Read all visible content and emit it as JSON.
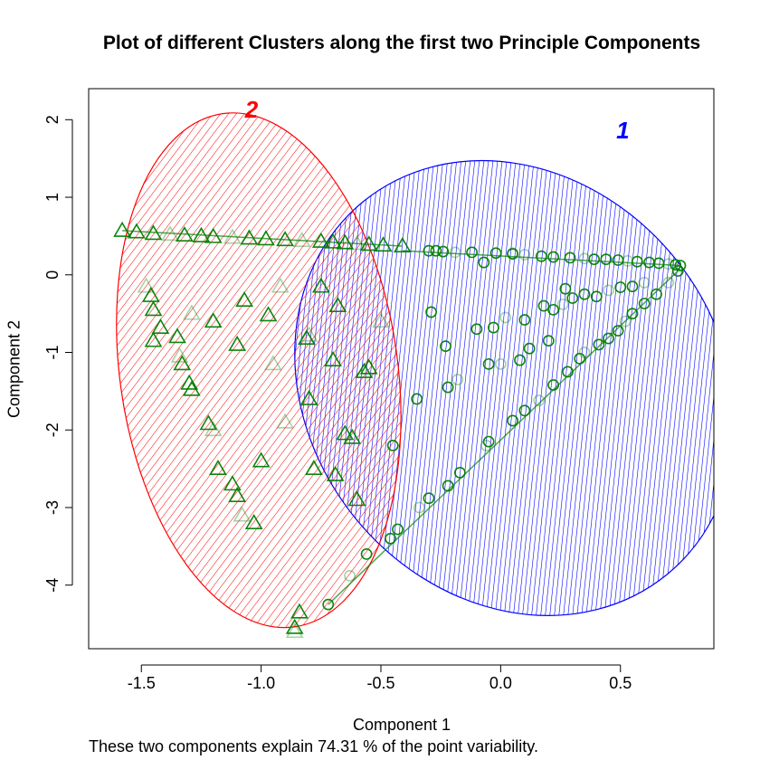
{
  "chart_data": {
    "type": "scatter",
    "title": "Plot of different Clusters along the first two Principle Components",
    "xlabel": "Component 1",
    "ylabel": "Component 2",
    "subtitle": "These two components explain 74.31 % of the point variability.",
    "xlim": [
      -1.72,
      0.89
    ],
    "ylim": [
      -4.82,
      2.4
    ],
    "x_ticks": [
      "-1.5",
      "-1.0",
      "-0.5",
      "0.0",
      "0.5"
    ],
    "x_tick_values": [
      -1.5,
      -1.0,
      -0.5,
      0.0,
      0.5
    ],
    "y_ticks": [
      "2",
      "1",
      "0",
      "-1",
      "-2",
      "-3",
      "-4"
    ],
    "y_tick_values": [
      2,
      1,
      0,
      -1,
      -2,
      -3,
      -4
    ],
    "grid": false,
    "clusters": [
      {
        "label": "1",
        "color": "#0000FF",
        "ellipse": {
          "cx": 0.06,
          "cy": -1.46,
          "rx": 0.86,
          "ry": 3.1,
          "angle_deg": 39
        },
        "marker": "circle",
        "marker_color": "#008000",
        "points": [
          [
            -0.3,
            0.31
          ],
          [
            -0.27,
            0.31
          ],
          [
            -0.24,
            0.3
          ],
          [
            -0.19,
            0.29
          ],
          [
            -0.12,
            0.29
          ],
          [
            -0.02,
            0.28
          ],
          [
            0.05,
            0.27
          ],
          [
            0.1,
            0.26
          ],
          [
            0.17,
            0.24
          ],
          [
            0.22,
            0.23
          ],
          [
            0.29,
            0.22
          ],
          [
            0.35,
            0.21
          ],
          [
            0.39,
            0.2
          ],
          [
            0.44,
            0.2
          ],
          [
            0.49,
            0.19
          ],
          [
            0.53,
            0.18
          ],
          [
            0.57,
            0.17
          ],
          [
            0.62,
            0.16
          ],
          [
            0.66,
            0.15
          ],
          [
            0.7,
            0.14
          ],
          [
            0.73,
            0.13
          ],
          [
            0.75,
            0.12
          ],
          [
            -0.72,
            -4.25
          ],
          [
            -0.63,
            -3.88
          ],
          [
            -0.56,
            -3.6
          ],
          [
            -0.46,
            -3.4
          ],
          [
            -0.43,
            -3.28
          ],
          [
            -0.34,
            -3.0
          ],
          [
            -0.3,
            -2.88
          ],
          [
            -0.22,
            -2.72
          ],
          [
            -0.17,
            -2.55
          ],
          [
            -0.06,
            -2.2
          ],
          [
            -0.05,
            -2.15
          ],
          [
            0.05,
            -1.88
          ],
          [
            0.1,
            -1.75
          ],
          [
            0.16,
            -1.62
          ],
          [
            0.22,
            -1.42
          ],
          [
            0.28,
            -1.25
          ],
          [
            0.33,
            -1.08
          ],
          [
            0.35,
            -1.0
          ],
          [
            0.41,
            -0.9
          ],
          [
            0.45,
            -0.82
          ],
          [
            0.49,
            -0.72
          ],
          [
            0.52,
            -0.6
          ],
          [
            0.55,
            -0.5
          ],
          [
            0.6,
            -0.37
          ],
          [
            0.65,
            -0.25
          ],
          [
            0.7,
            -0.1
          ],
          [
            0.74,
            0.05
          ],
          [
            -0.29,
            -0.48
          ],
          [
            -0.23,
            -0.92
          ],
          [
            -0.18,
            -1.35
          ],
          [
            -0.1,
            -0.7
          ],
          [
            -0.05,
            -1.15
          ],
          [
            -0.03,
            -0.68
          ],
          [
            0.02,
            -0.55
          ],
          [
            0.1,
            -0.58
          ],
          [
            0.18,
            -0.4
          ],
          [
            0.22,
            -0.45
          ],
          [
            0.26,
            -0.38
          ],
          [
            0.3,
            -0.3
          ],
          [
            0.35,
            -0.25
          ],
          [
            0.4,
            -0.28
          ],
          [
            0.45,
            -0.2
          ],
          [
            0.5,
            -0.16
          ],
          [
            0.55,
            -0.15
          ],
          [
            -0.07,
            0.16
          ],
          [
            0.05,
            0.28
          ],
          [
            0.12,
            -0.95
          ],
          [
            0.2,
            -0.85
          ],
          [
            0.27,
            -0.18
          ],
          [
            0.6,
            -0.1
          ],
          [
            -0.35,
            -1.6
          ],
          [
            -0.45,
            -2.2
          ],
          [
            -0.22,
            -1.45
          ],
          [
            0.0,
            -1.15
          ],
          [
            0.08,
            -1.1
          ]
        ]
      },
      {
        "label": "2",
        "color": "#FF0000",
        "ellipse": {
          "cx": -1.01,
          "cy": -1.23,
          "rx": 0.58,
          "ry": 3.34,
          "angle_deg": 8
        },
        "marker": "triangle",
        "marker_color": "#008000",
        "points": [
          [
            -1.58,
            0.57
          ],
          [
            -1.52,
            0.55
          ],
          [
            -1.45,
            0.53
          ],
          [
            -1.38,
            0.52
          ],
          [
            -1.32,
            0.51
          ],
          [
            -1.25,
            0.5
          ],
          [
            -1.2,
            0.49
          ],
          [
            -1.12,
            0.48
          ],
          [
            -1.05,
            0.47
          ],
          [
            -0.98,
            0.46
          ],
          [
            -0.9,
            0.45
          ],
          [
            -0.83,
            0.44
          ],
          [
            -0.75,
            0.43
          ],
          [
            -0.7,
            0.42
          ],
          [
            -0.65,
            0.41
          ],
          [
            -0.6,
            0.4
          ],
          [
            -0.55,
            0.39
          ],
          [
            -0.49,
            0.38
          ],
          [
            -0.41,
            0.37
          ],
          [
            -1.48,
            -0.15
          ],
          [
            -1.46,
            -0.27
          ],
          [
            -1.45,
            -0.45
          ],
          [
            -1.42,
            -0.68
          ],
          [
            -1.34,
            -1.05
          ],
          [
            -1.33,
            -1.15
          ],
          [
            -1.29,
            -1.48
          ],
          [
            -1.22,
            -1.92
          ],
          [
            -1.2,
            -2.0
          ],
          [
            -1.18,
            -2.5
          ],
          [
            -1.12,
            -2.7
          ],
          [
            -1.1,
            -2.85
          ],
          [
            -1.08,
            -3.1
          ],
          [
            -1.03,
            -3.2
          ],
          [
            -0.86,
            -4.55
          ],
          [
            -0.84,
            -4.35
          ],
          [
            -0.86,
            -4.6
          ],
          [
            -0.65,
            -2.05
          ],
          [
            -0.62,
            -2.1
          ],
          [
            -0.69,
            -2.58
          ],
          [
            -0.8,
            -0.78
          ],
          [
            -0.81,
            -0.82
          ],
          [
            -0.57,
            -1.25
          ],
          [
            -0.55,
            -1.2
          ],
          [
            -0.5,
            -0.6
          ],
          [
            -0.68,
            -0.4
          ],
          [
            -0.97,
            -0.52
          ],
          [
            -1.07,
            -0.33
          ],
          [
            -1.29,
            -0.5
          ],
          [
            -1.35,
            -0.8
          ],
          [
            -1.45,
            -0.85
          ],
          [
            -1.1,
            -0.9
          ],
          [
            -0.95,
            -1.15
          ],
          [
            -0.8,
            -1.6
          ],
          [
            -0.7,
            -1.1
          ],
          [
            -1.0,
            -2.4
          ],
          [
            -0.9,
            -1.9
          ],
          [
            -0.78,
            -2.5
          ],
          [
            -0.6,
            -2.9
          ],
          [
            -0.75,
            -0.15
          ],
          [
            -0.92,
            -0.15
          ],
          [
            -1.2,
            -0.6
          ],
          [
            -1.3,
            -1.4
          ]
        ]
      }
    ]
  }
}
